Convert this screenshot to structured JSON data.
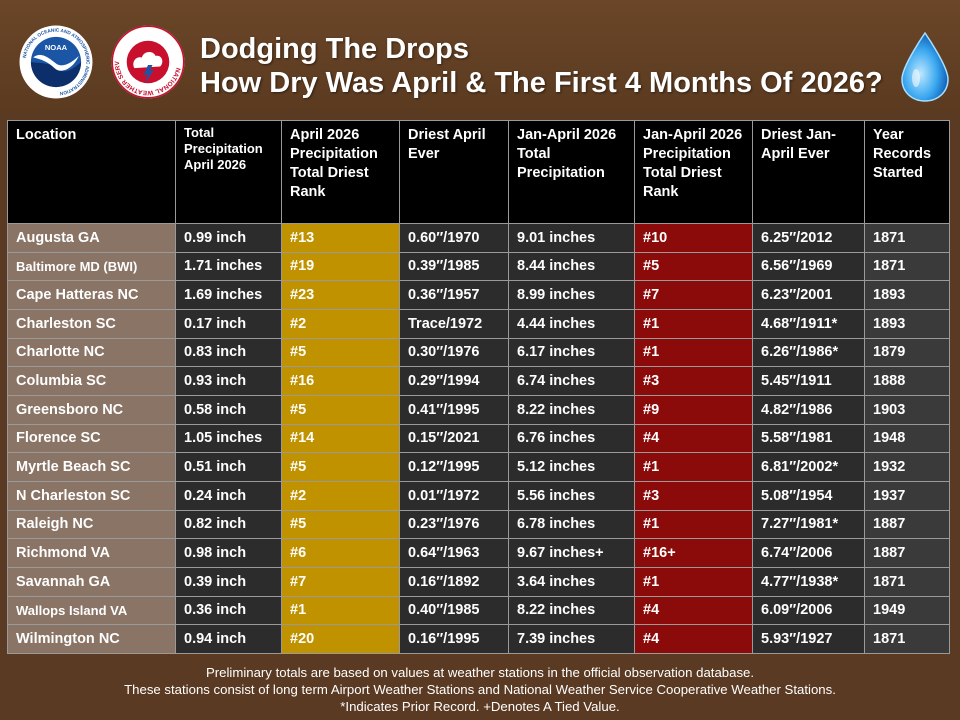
{
  "header": {
    "title_line1": "Dodging The Drops",
    "title_line2": "How Dry Was April & The First 4 Months Of 2026?",
    "logo_noaa_text": "NOAA",
    "logo_noaa_ring_text": "NATIONAL OCEANIC AND ATMOSPHERIC ADMINISTRATION",
    "logo_noaa_bottom_text": "U.S. DEPARTMENT OF COMMERCE",
    "logo_nws_ring_text": "NATIONAL WEATHER SERVICE",
    "drop_icon": "water-drop-icon"
  },
  "colors": {
    "background": "#5a3a22",
    "location_col": "#8a7466",
    "april_rank_col": "#c09200",
    "jan_april_rank_col": "#8b0a0a",
    "dark_cell": "#2c2c2c"
  },
  "table": {
    "headers": [
      "Location",
      "Total Precipitation April 2026",
      "April 2026 Precipitation Total Driest Rank",
      "Driest April Ever",
      "Jan-April 2026 Total Precipitation",
      "Jan-April 2026 Precipitation Total Driest Rank",
      "Driest Jan-April Ever",
      "Year Records Started"
    ],
    "rows": [
      [
        "Augusta GA",
        "0.99 inch",
        "#13",
        "0.60″/1970",
        "9.01 inches",
        "#10",
        "6.25″/2012",
        "1871"
      ],
      [
        "Baltimore MD (BWI)",
        "1.71 inches",
        "#19",
        "0.39″/1985",
        "8.44 inches",
        "#5",
        "6.56″/1969",
        "1871"
      ],
      [
        "Cape Hatteras NC",
        "1.69 inches",
        "#23",
        "0.36″/1957",
        "8.99 inches",
        "#7",
        "6.23″/2001",
        "1893"
      ],
      [
        "Charleston SC",
        "0.17 inch",
        "#2",
        "Trace/1972",
        "4.44 inches",
        "#1",
        "4.68″/1911*",
        "1893"
      ],
      [
        "Charlotte NC",
        "0.83 inch",
        "#5",
        "0.30″/1976",
        "6.17 inches",
        "#1",
        "6.26″/1986*",
        "1879"
      ],
      [
        "Columbia SC",
        "0.93 inch",
        "#16",
        "0.29″/1994",
        "6.74 inches",
        "#3",
        "5.45″/1911",
        "1888"
      ],
      [
        "Greensboro NC",
        "0.58 inch",
        "#5",
        "0.41″/1995",
        "8.22 inches",
        "#9",
        "4.82″/1986",
        "1903"
      ],
      [
        "Florence SC",
        "1.05 inches",
        "#14",
        "0.15″/2021",
        "6.76 inches",
        "#4",
        "5.58″/1981",
        "1948"
      ],
      [
        "Myrtle Beach SC",
        "0.51 inch",
        "#5",
        "0.12″/1995",
        "5.12 inches",
        "#1",
        "6.81″/2002*",
        "1932"
      ],
      [
        "N Charleston SC",
        "0.24 inch",
        "#2",
        "0.01″/1972",
        "5.56 inches",
        "#3",
        "5.08″/1954",
        "1937"
      ],
      [
        "Raleigh NC",
        "0.82 inch",
        "#5",
        "0.23″/1976",
        "6.78 inches",
        "#1",
        "7.27″/1981*",
        "1887"
      ],
      [
        "Richmond VA",
        "0.98 inch",
        "#6",
        "0.64″/1963",
        "9.67 inches+",
        "#16+",
        "6.74″/2006",
        "1887"
      ],
      [
        "Savannah GA",
        "0.39 inch",
        "#7",
        "0.16″/1892",
        "3.64 inches",
        "#1",
        "4.77″/1938*",
        "1871"
      ],
      [
        "Wallops Island VA",
        "0.36 inch",
        "#1",
        "0.40″/1985",
        "8.22 inches",
        "#4",
        "6.09″/2006",
        "1949"
      ],
      [
        "Wilmington NC",
        "0.94 inch",
        "#20",
        "0.16″/1995",
        "7.39 inches",
        "#4",
        "5.93″/1927",
        "1871"
      ]
    ]
  },
  "footer": {
    "line1": "Preliminary totals are based on values at weather stations in the official observation database.",
    "line2": "These stations consist of long term Airport Weather Stations and National Weather Service Cooperative Weather Stations.",
    "line3": "*Indicates Prior Record. +Denotes A Tied Value."
  }
}
